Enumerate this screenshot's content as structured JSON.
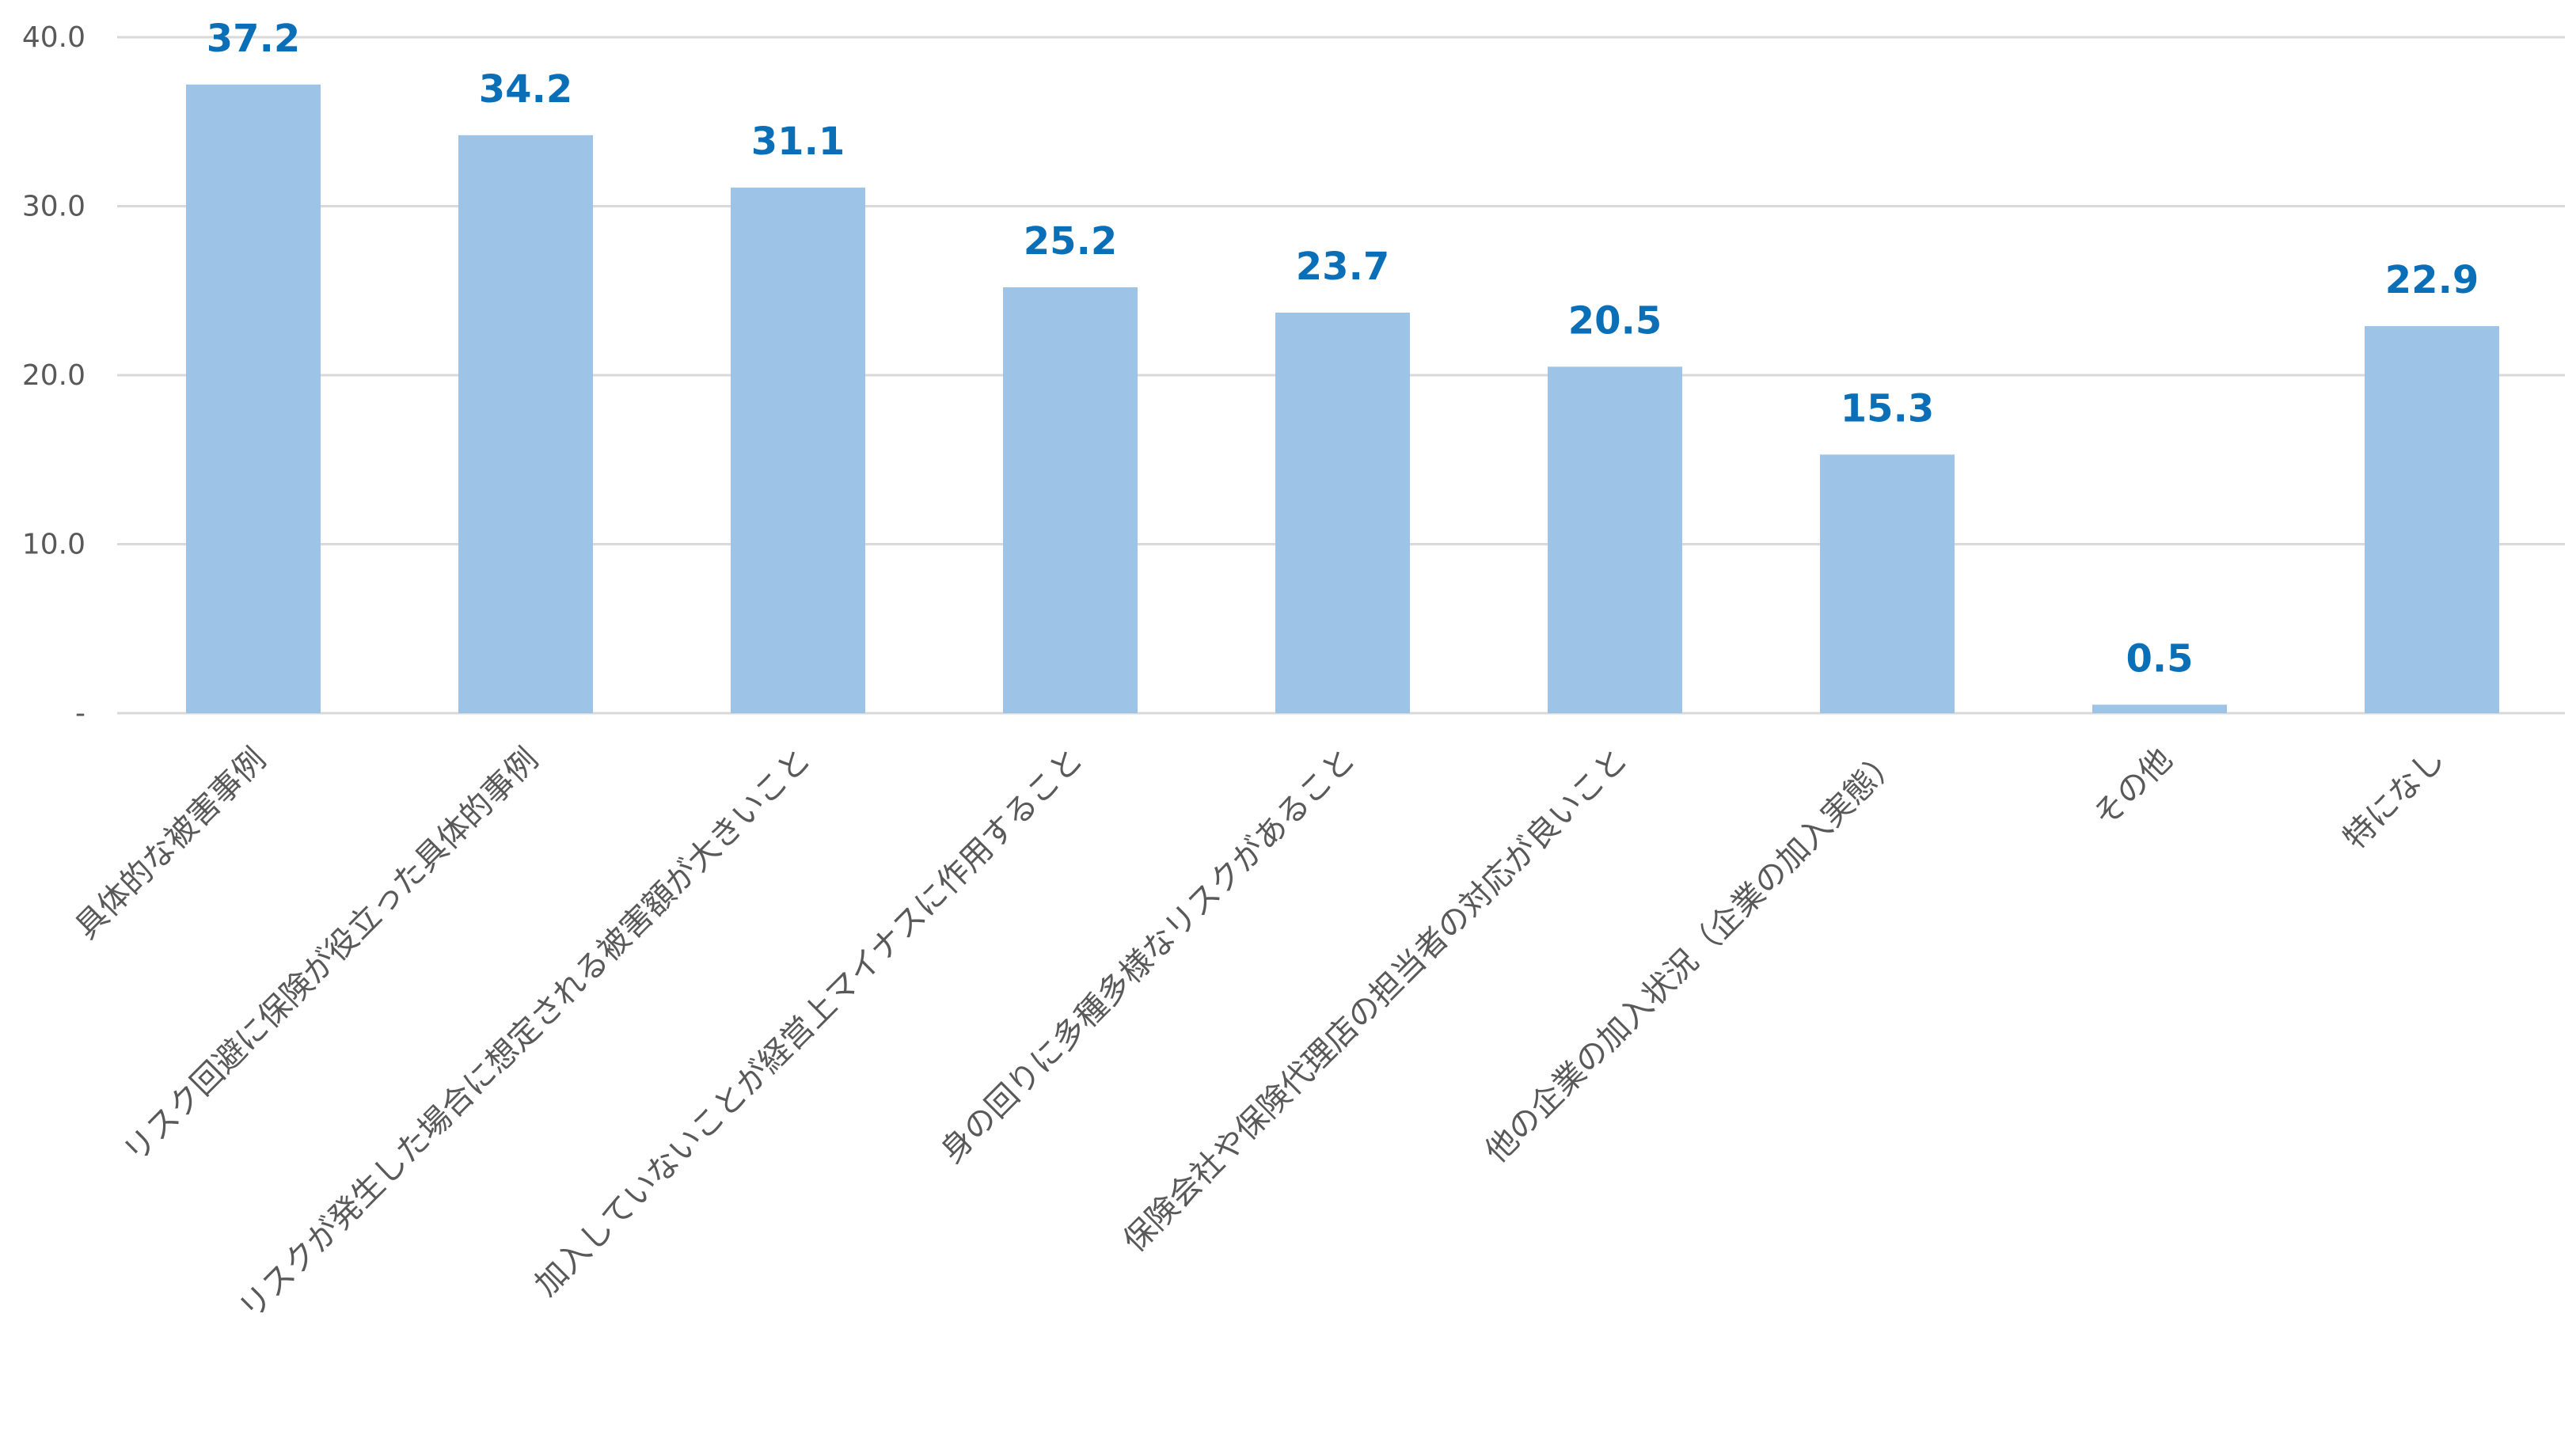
{
  "chart_data": {
    "type": "bar",
    "categories": [
      "具体的な被害事例",
      "リスク回避に保険が役立った具体的事例",
      "リスクが発生した場合に想定される被害額が大きいこと",
      "加入していないことが経営上マイナスに作用すること",
      "身の回りに多種多様なリスクがあること",
      "保険会社や保険代理店の担当者の対応が良いこと",
      "他の企業の加入状況（企業の加入実態）",
      "その他",
      "特になし"
    ],
    "values": [
      37.2,
      34.2,
      31.1,
      25.2,
      23.7,
      20.5,
      15.3,
      0.5,
      22.9
    ],
    "data_labels": [
      "37.2",
      "34.2",
      "31.1",
      "25.2",
      "23.7",
      "20.5",
      "15.3",
      "0.5",
      "22.9"
    ],
    "ylim": [
      0,
      40
    ],
    "yticks": [
      0,
      10,
      20,
      30,
      40
    ],
    "ytick_labels": [
      "-",
      "10.0",
      "20.0",
      "30.0",
      "40.0"
    ],
    "grid": true,
    "legend": "none",
    "bar_color": "#9dc3e6",
    "label_color": "#0b6fb8",
    "grid_color": "#d9d9d9",
    "tick_color": "#595959"
  }
}
